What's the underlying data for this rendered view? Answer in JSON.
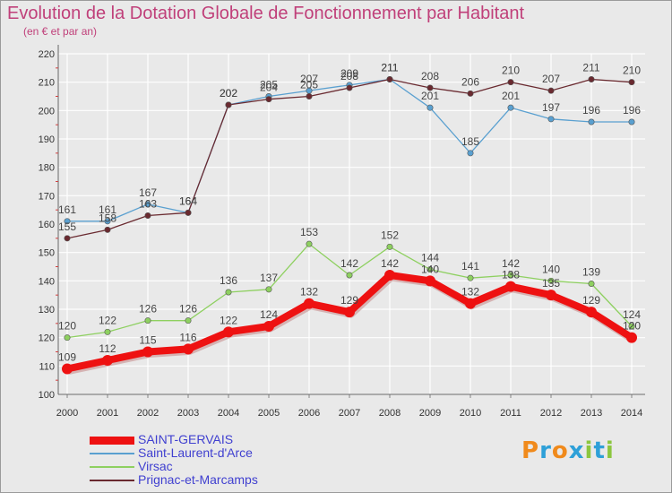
{
  "title": "Evolution de la Dotation Globale de Fonctionnement par Habitant",
  "subtitle": "(en € et par an)",
  "brand": {
    "text": "Proxiti",
    "colors": [
      "#f08a1c",
      "#2ea0d8",
      "#f08a1c",
      "#2ea0d8",
      "#8cc63f",
      "#2ea0d8",
      "#8cc63f"
    ]
  },
  "chart_data": {
    "type": "line",
    "title": "Evolution de la Dotation Globale de Fonctionnement par Habitant",
    "subtitle": "(en € et par an)",
    "xlabel": "",
    "ylabel": "",
    "x": [
      "2000",
      "2001",
      "2002",
      "2003",
      "2004",
      "2005",
      "2006",
      "2007",
      "2008",
      "2009",
      "2010",
      "2011",
      "2012",
      "2013",
      "2014"
    ],
    "ylim": [
      100,
      220
    ],
    "yticks": [
      100,
      110,
      120,
      130,
      140,
      150,
      160,
      170,
      180,
      190,
      200,
      210,
      220
    ],
    "grid": true,
    "legend_position": "bottom",
    "series": [
      {
        "name": "SAINT-GERVAIS",
        "color": "#ee1111",
        "values": [
          109,
          112,
          115,
          116,
          122,
          124,
          132,
          129,
          142,
          140,
          132,
          138,
          135,
          129,
          120
        ]
      },
      {
        "name": "Saint-Laurent-d'Arce",
        "color": "#5aa0d0",
        "values": [
          161,
          161,
          167,
          164,
          202,
          205,
          207,
          209,
          211,
          201,
          185,
          201,
          197,
          196,
          196
        ]
      },
      {
        "name": "Virsac",
        "color": "#8ed060",
        "values": [
          120,
          122,
          126,
          126,
          136,
          137,
          153,
          142,
          152,
          144,
          141,
          142,
          140,
          139,
          124
        ]
      },
      {
        "name": "Prignac-et-Marcamps",
        "color": "#6a2a30",
        "values": [
          155,
          158,
          163,
          164,
          202,
          204,
          205,
          208,
          211,
          208,
          206,
          210,
          207,
          211,
          210
        ]
      }
    ]
  }
}
